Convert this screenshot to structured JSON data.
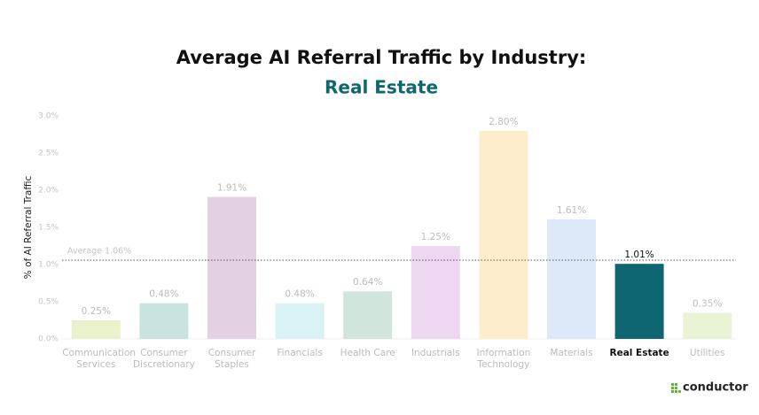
{
  "chart_data": {
    "type": "bar",
    "title": "Average AI Referral Traffic by Industry:",
    "subtitle": "Real Estate",
    "y_label": "% of AI Referral Traffic",
    "categories": [
      "Communication Services",
      "Consumer Discretionary",
      "Consumer Staples",
      "Financials",
      "Health Care",
      "Industrials",
      "Information Technology",
      "Materials",
      "Real Estate",
      "Utilities"
    ],
    "values": [
      0.25,
      0.48,
      1.91,
      0.48,
      0.64,
      1.25,
      2.8,
      1.61,
      1.01,
      0.35
    ],
    "value_labels": [
      "0.25%",
      "0.48%",
      "1.91%",
      "0.48%",
      "0.64%",
      "1.25%",
      "2.80%",
      "1.61%",
      "1.01%",
      "0.35%"
    ],
    "colors": [
      "#e9f2cb",
      "#c9e4e0",
      "#e3d1e1",
      "#d9f2f3",
      "#d0e6dd",
      "#eed7f1",
      "#fdedcc",
      "#dde9f9",
      "#0e6670",
      "#e9f4d6"
    ],
    "ylim": [
      0,
      3.0
    ],
    "yticks": [
      {
        "value": 0,
        "label": "0.0%"
      },
      {
        "value": 0.5,
        "label": "0.5%"
      },
      {
        "value": 1.0,
        "label": "1.0%"
      },
      {
        "value": 1.5,
        "label": "1.5%"
      },
      {
        "value": 2.0,
        "label": "2.0%"
      },
      {
        "value": 2.5,
        "label": "2.5%"
      },
      {
        "value": 3.0,
        "label": "3.0%"
      }
    ],
    "reference_line": {
      "value": 1.06,
      "label": "Average 1.06%"
    },
    "brand": "conductor"
  }
}
